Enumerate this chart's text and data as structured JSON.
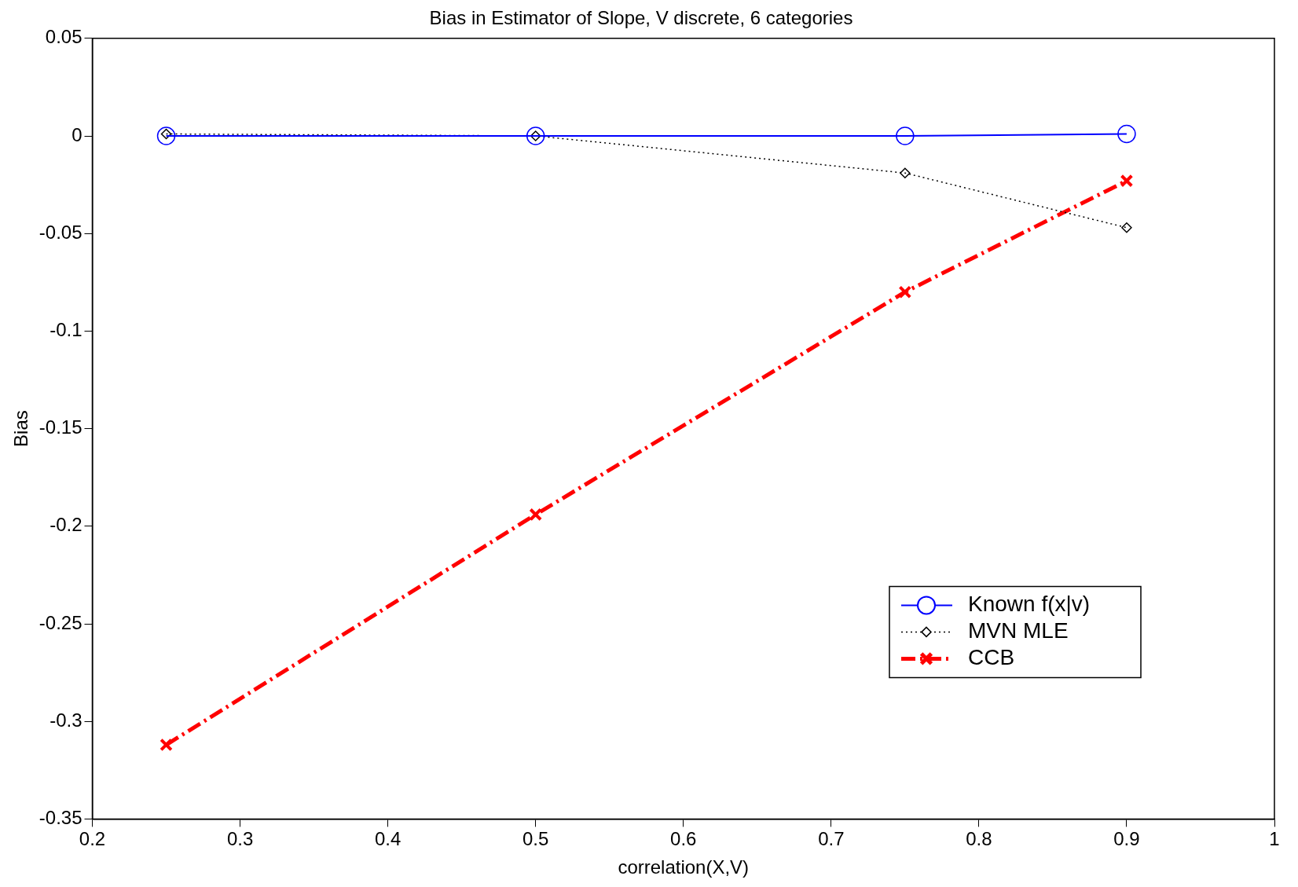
{
  "chart_data": {
    "type": "line",
    "title": "Bias in Estimator of Slope, V discrete, 6 categories",
    "xlabel": "correlation(X,V)",
    "ylabel": "Bias",
    "x": [
      0.25,
      0.5,
      0.75,
      0.9
    ],
    "series": [
      {
        "name": "Known f(x|v)",
        "color": "#0000ff",
        "values": [
          0,
          0,
          0,
          0.001
        ],
        "marker": "circle",
        "line_style": "solid"
      },
      {
        "name": "MVN MLE",
        "color": "#000000",
        "values": [
          0.001,
          0,
          -0.019,
          -0.047
        ],
        "marker": "diamond",
        "line_style": "dotted"
      },
      {
        "name": "CCB",
        "color": "#ff0000",
        "values": [
          -0.312,
          -0.194,
          -0.08,
          -0.023
        ],
        "marker": "cross",
        "line_style": "dashed"
      }
    ],
    "xlim": [
      0.2,
      1
    ],
    "xticks": [
      0.2,
      0.3,
      0.4,
      0.5,
      0.6,
      0.7,
      0.8,
      0.9,
      1
    ],
    "ylim": [
      -0.35,
      0.05
    ],
    "yticks": [
      -0.35,
      -0.3,
      -0.25,
      -0.2,
      -0.15,
      -0.1,
      -0.05,
      0,
      0.05
    ],
    "grid": false,
    "legend": "bottom right"
  }
}
